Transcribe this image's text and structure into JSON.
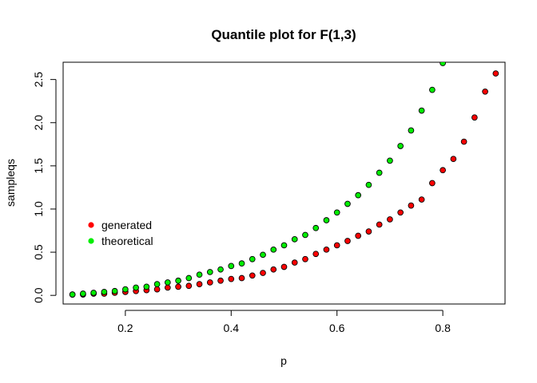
{
  "chart_data": {
    "type": "scatter",
    "title": "Quantile plot for F(1,3)",
    "xlabel": "p",
    "ylabel": "sampleqs",
    "xlim": [
      0.0824,
      0.9176
    ],
    "ylim": [
      -0.1,
      2.7
    ],
    "xticks": [
      0.2,
      0.4,
      0.6,
      0.8
    ],
    "xtick_labels": [
      "0.2",
      "0.4",
      "0.6",
      "0.8"
    ],
    "yticks": [
      0.0,
      0.5,
      1.0,
      1.5,
      2.0,
      2.5
    ],
    "ytick_labels": [
      "0.0",
      "0.5",
      "1.0",
      "1.5",
      "2.0",
      "2.5"
    ],
    "grid": false,
    "legend_position": "left",
    "x": [
      0.1,
      0.12,
      0.14,
      0.16,
      0.18,
      0.2,
      0.22,
      0.24,
      0.26,
      0.28,
      0.3,
      0.32,
      0.34,
      0.36,
      0.38,
      0.4,
      0.42,
      0.44,
      0.46,
      0.48,
      0.5,
      0.52,
      0.54,
      0.56,
      0.58,
      0.6,
      0.62,
      0.64,
      0.66,
      0.68,
      0.7,
      0.72,
      0.74,
      0.76,
      0.78,
      0.8,
      0.82,
      0.84,
      0.86,
      0.88,
      0.9
    ],
    "series": [
      {
        "name": "generated",
        "color": "#ff0000",
        "values": [
          0.01,
          0.01,
          0.02,
          0.02,
          0.03,
          0.04,
          0.05,
          0.06,
          0.07,
          0.09,
          0.1,
          0.11,
          0.13,
          0.15,
          0.17,
          0.19,
          0.2,
          0.23,
          0.26,
          0.3,
          0.33,
          0.38,
          0.42,
          0.48,
          0.53,
          0.58,
          0.63,
          0.69,
          0.74,
          0.82,
          0.88,
          0.96,
          1.04,
          1.11,
          1.3,
          1.45,
          1.58,
          1.78,
          2.06,
          2.36,
          2.57
        ]
      },
      {
        "name": "theoretical",
        "color": "#00ee00",
        "values": [
          0.01,
          0.02,
          0.03,
          0.04,
          0.05,
          0.07,
          0.09,
          0.1,
          0.13,
          0.15,
          0.17,
          0.2,
          0.24,
          0.27,
          0.3,
          0.34,
          0.37,
          0.42,
          0.47,
          0.53,
          0.58,
          0.65,
          0.7,
          0.78,
          0.87,
          0.96,
          1.06,
          1.16,
          1.28,
          1.42,
          1.56,
          1.73,
          1.91,
          2.14,
          2.38,
          2.69
        ]
      }
    ]
  }
}
